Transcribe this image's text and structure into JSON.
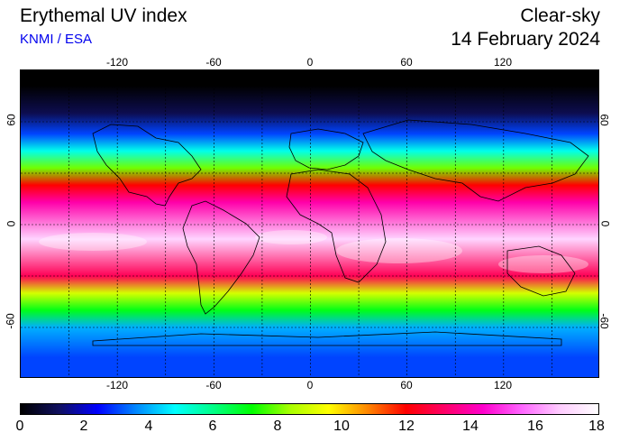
{
  "header": {
    "title": "Erythemal UV index",
    "credit": "KNMI / ESA",
    "condition": "Clear-sky",
    "date": "14 February 2024"
  },
  "map": {
    "lon_ticks": [
      "-120",
      "-60",
      "0",
      "60",
      "120"
    ],
    "lat_ticks": [
      "60",
      "0",
      "-60"
    ],
    "zones": [
      {
        "lat_range": [
          90,
          72
        ],
        "uv": 0
      },
      {
        "lat_range": [
          72,
          58
        ],
        "uv": 1
      },
      {
        "lat_range": [
          58,
          48
        ],
        "uv": 3
      },
      {
        "lat_range": [
          48,
          38
        ],
        "uv": 5
      },
      {
        "lat_range": [
          38,
          28
        ],
        "uv": 8
      },
      {
        "lat_range": [
          28,
          18
        ],
        "uv": 12
      },
      {
        "lat_range": [
          18,
          8
        ],
        "uv": 14
      },
      {
        "lat_range": [
          8,
          -25
        ],
        "uv": 17
      },
      {
        "lat_range": [
          -25,
          -35
        ],
        "uv": 13
      },
      {
        "lat_range": [
          -35,
          -45
        ],
        "uv": 9
      },
      {
        "lat_range": [
          -45,
          -55
        ],
        "uv": 7
      },
      {
        "lat_range": [
          -55,
          -65
        ],
        "uv": 4
      },
      {
        "lat_range": [
          -65,
          -90
        ],
        "uv": 3
      }
    ]
  },
  "colorbar": {
    "labels": [
      "0",
      "2",
      "4",
      "6",
      "8",
      "10",
      "12",
      "14",
      "16",
      "18"
    ],
    "min": 0,
    "max": 18,
    "stops": [
      "#000000",
      "#101060",
      "#0000ff",
      "#0088ff",
      "#00ffff",
      "#00ff88",
      "#00ff00",
      "#aaff00",
      "#ffff00",
      "#ff8800",
      "#ff0000",
      "#ff0066",
      "#ff00cc",
      "#ff66ff",
      "#ffccff",
      "#ffffff"
    ]
  }
}
